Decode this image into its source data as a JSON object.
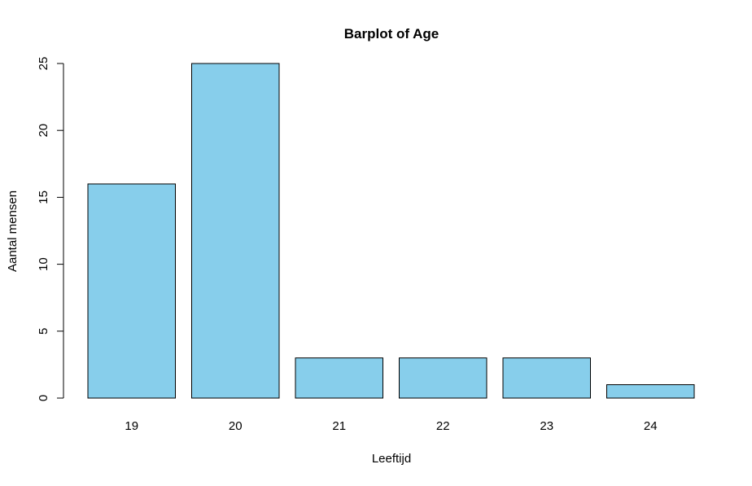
{
  "chart_data": {
    "type": "bar",
    "title": "Barplot of Age",
    "xlabel": "Leeftijd",
    "ylabel": "Aantal mensen",
    "categories": [
      "19",
      "20",
      "21",
      "22",
      "23",
      "24"
    ],
    "values": [
      16,
      25,
      3,
      3,
      3,
      1
    ],
    "ylim": [
      0,
      25
    ],
    "yticks": [
      "0",
      "5",
      "10",
      "15",
      "20",
      "25"
    ],
    "grid": false,
    "legend": "none",
    "bar_color": "#87CEEB",
    "bar_border_color": "#000000"
  }
}
